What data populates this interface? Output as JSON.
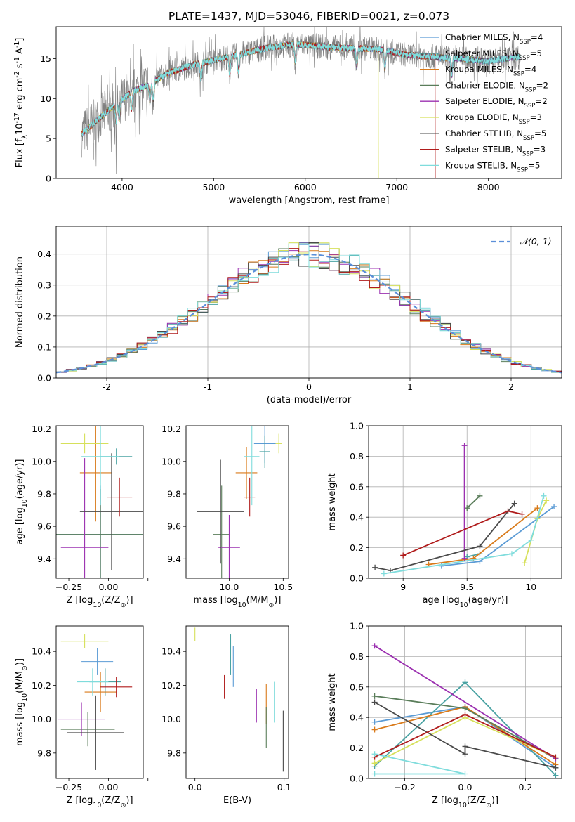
{
  "figure_title": "PLATE=1437, MJD=53046, FIBERID=0021, z=0.073",
  "models": [
    {
      "name": "Chabrier MILES, N$_{SSP}$=4",
      "label_base": "Chabrier MILES, N",
      "label_sub": "SSP",
      "label_tail": "=4",
      "color": "#5b9bd5"
    },
    {
      "name": "Salpeter MILES, N$_{SSP}$=5",
      "label_base": "Salpeter MILES, N",
      "label_sub": "SSP",
      "label_tail": "=5",
      "color": "#4aa3a3"
    },
    {
      "name": "Kroupa MILES, N$_{SSP}$=4",
      "label_base": "Kroupa MILES, N",
      "label_sub": "SSP",
      "label_tail": "=4",
      "color": "#d97a1a"
    },
    {
      "name": "Chabrier ELODIE, N$_{SSP}$=2",
      "label_base": "Chabrier ELODIE, N",
      "label_sub": "SSP",
      "label_tail": "=2",
      "color": "#5a7d5a"
    },
    {
      "name": "Salpeter ELODIE, N$_{SSP}$=2",
      "label_base": "Salpeter ELODIE, N",
      "label_sub": "SSP",
      "label_tail": "=2",
      "color": "#9b30b0"
    },
    {
      "name": "Kroupa ELODIE, N$_{SSP}$=3",
      "label_base": "Kroupa ELODIE, N",
      "label_sub": "SSP",
      "label_tail": "=3",
      "color": "#d6e05a"
    },
    {
      "name": "Chabrier STELIB, N$_{SSP}$=5",
      "label_base": "Chabrier STELIB, N",
      "label_sub": "SSP",
      "label_tail": "=5",
      "color": "#4a4a4a"
    },
    {
      "name": "Salpeter STELIB, N$_{SSP}$=3",
      "label_base": "Salpeter STELIB, N",
      "label_sub": "SSP",
      "label_tail": "=3",
      "color": "#b01c1c"
    },
    {
      "name": "Kroupa STELIB, N$_{SSP}$=5",
      "label_base": "Kroupa STELIB, N",
      "label_sub": "SSP",
      "label_tail": "=5",
      "color": "#7fdcdc"
    }
  ],
  "chart_data": [
    {
      "id": "spectrum",
      "type": "line",
      "title": "PLATE=1437, MJD=53046, FIBERID=0021, z=0.073",
      "xlabel": "wavelength [Angstrom, rest frame]",
      "ylabel": "Flux [f$_\\lambda$10$^{-17}$ erg cm$^{-2}$ s$^{-1}$ A$^{-1}$]",
      "xlim": [
        3280,
        8800
      ],
      "ylim": [
        0,
        19
      ],
      "xticks": [
        4000,
        5000,
        6000,
        7000,
        8000
      ],
      "yticks": [
        0,
        5,
        10,
        15
      ],
      "observed_color": "#808080",
      "continuum": {
        "x": [
          3550,
          3700,
          3900,
          4100,
          4300,
          4500,
          4800,
          5000,
          5300,
          5600,
          5900,
          6200,
          6500,
          6800,
          7100,
          7400,
          7700,
          8000,
          8300
        ],
        "y": [
          5.5,
          7.0,
          9.0,
          10.8,
          11.8,
          13.2,
          14.3,
          14.8,
          15.6,
          16.4,
          16.8,
          16.5,
          16.3,
          16.2,
          15.5,
          15.2,
          15.0,
          14.7,
          15.2
        ]
      },
      "model_dropouts": [
        {
          "model": "Kroupa ELODIE, N$_{SSP}$=3",
          "x": 6800
        },
        {
          "model": "Salpeter STELIB, N$_{SSP}$=3",
          "x": 7420
        }
      ],
      "grid": false,
      "legend": "top-right"
    },
    {
      "id": "residuals",
      "type": "bar",
      "xlabel": "(data-model)/error",
      "ylabel": "Normed distribution",
      "xlim": [
        -2.5,
        2.5
      ],
      "ylim": [
        0,
        0.49
      ],
      "xticks": [
        -2,
        -1,
        0,
        1,
        2
      ],
      "yticks": [
        0.0,
        0.1,
        0.2,
        0.3,
        0.4
      ],
      "bin_width": 0.1,
      "bin_start": -2.5,
      "reference": {
        "name": "$\\mathcal{N}(0,1)$",
        "mu": 0,
        "sigma": 1,
        "color": "#5b8fd9"
      },
      "legend": "top-right",
      "grid": true
    },
    {
      "id": "z-age",
      "type": "scatter",
      "xlabel": "Z [log$_{10}$(Z/Z$_\\odot$)]",
      "ylabel": "age  [log$_{10}$(age/yr)]",
      "xlim": [
        -0.33,
        0.22
      ],
      "ylim": [
        9.28,
        10.22
      ],
      "xticks": [
        -0.25,
        0,
        0.25
      ],
      "xticklabels": [
        "−0.25",
        "0.00",
        ""
      ],
      "yticks": [
        9.4,
        9.6,
        9.8,
        10.0,
        10.2
      ],
      "points": [
        {
          "x": -0.05,
          "y": 9.55,
          "xerr": 0.28,
          "yerr": 0.3
        },
        {
          "x": 0.05,
          "y": 10.03,
          "xerr": 0.1,
          "yerr": 0.05
        },
        {
          "x": -0.08,
          "y": 9.93,
          "xerr": 0.1,
          "yerr": 0.3
        },
        {
          "x": -0.05,
          "y": 9.55,
          "xerr": 0.28,
          "yerr": 0.28
        },
        {
          "x": -0.15,
          "y": 9.47,
          "xerr": 0.15,
          "yerr": 0.55
        },
        {
          "x": -0.15,
          "y": 10.11,
          "xerr": 0.15,
          "yerr": 0.06
        },
        {
          "x": 0.02,
          "y": 9.69,
          "xerr": 0.2,
          "yerr": 0.36
        },
        {
          "x": 0.07,
          "y": 9.78,
          "xerr": 0.08,
          "yerr": 0.12
        },
        {
          "x": -0.05,
          "y": 10.03,
          "xerr": 0.12,
          "yerr": 0.3
        }
      ]
    },
    {
      "id": "mass-age",
      "type": "scatter",
      "xlabel": "mass [log$_{10}$(M/M$_\\odot$)]",
      "ylabel": "",
      "xlim": [
        9.6,
        10.55
      ],
      "ylim": [
        9.28,
        10.22
      ],
      "xticks": [
        10.0,
        10.5
      ],
      "xticklabels": [
        "10.0",
        "10.5"
      ],
      "yticks": [
        9.4,
        9.6,
        9.8,
        10.0,
        10.2
      ],
      "points": [
        {
          "x": 10.33,
          "y": 10.11,
          "xerr": 0.1,
          "yerr": 0.12
        },
        {
          "x": 10.33,
          "y": 10.06,
          "xerr": 0.05,
          "yerr": 0.1
        },
        {
          "x": 10.16,
          "y": 9.93,
          "xerr": 0.1,
          "yerr": 0.16
        },
        {
          "x": 9.93,
          "y": 9.55,
          "xerr": 0.08,
          "yerr": 0.3
        },
        {
          "x": 10.0,
          "y": 9.47,
          "xerr": 0.1,
          "yerr": 0.2
        },
        {
          "x": 10.46,
          "y": 10.11,
          "xerr": 0.03,
          "yerr": 0.06
        },
        {
          "x": 9.92,
          "y": 9.69,
          "xerr": 0.22,
          "yerr": 0.32
        },
        {
          "x": 10.19,
          "y": 9.78,
          "xerr": 0.05,
          "yerr": 0.12
        },
        {
          "x": 10.21,
          "y": 10.03,
          "xerr": 0.07,
          "yerr": 0.3
        }
      ]
    },
    {
      "id": "age-weight",
      "type": "line",
      "xlabel": "age  [log$_{10}$(age/yr)]",
      "ylabel": "mass weight",
      "xlim": [
        8.73,
        10.24
      ],
      "ylim": [
        0.0,
        1.0
      ],
      "xticks": [
        9.0,
        9.5,
        10.0
      ],
      "yticks": [
        0.0,
        0.2,
        0.4,
        0.6,
        0.8,
        1.0
      ],
      "series": [
        {
          "x": [
            9.3,
            9.6,
            10.18
          ],
          "y": [
            0.08,
            0.11,
            0.47
          ]
        },
        {
          "x": [
            9.5,
            9.6
          ],
          "y": [
            0.14,
            0.16
          ]
        },
        {
          "x": [
            9.2,
            9.55,
            10.05
          ],
          "y": [
            0.09,
            0.13,
            0.46
          ]
        },
        {
          "x": [
            9.5,
            9.6
          ],
          "y": [
            0.46,
            0.54
          ]
        },
        {
          "x": [
            9.48,
            9.48
          ],
          "y": [
            0.13,
            0.87
          ]
        },
        {
          "x": [
            9.95,
            10.05,
            10.12
          ],
          "y": [
            0.1,
            0.39,
            0.51
          ]
        },
        {
          "x": [
            8.78,
            8.9,
            9.6,
            9.87
          ],
          "y": [
            0.07,
            0.05,
            0.21,
            0.49
          ]
        },
        {
          "x": [
            9.0,
            9.82,
            9.93
          ],
          "y": [
            0.15,
            0.44,
            0.42
          ]
        },
        {
          "x": [
            8.85,
            9.85,
            10.0,
            10.1
          ],
          "y": [
            0.03,
            0.16,
            0.25,
            0.54
          ]
        }
      ],
      "grid": true
    },
    {
      "id": "z-mass",
      "type": "scatter",
      "xlabel": "Z [log$_{10}$(Z/Z$_\\odot$)]",
      "ylabel": "mass [log$_{10}$(M/M$_\\odot$)]",
      "xlim": [
        -0.33,
        0.22
      ],
      "ylim": [
        9.65,
        10.55
      ],
      "xticks": [
        -0.25,
        0,
        0.25
      ],
      "xticklabels": [
        "−0.25",
        "0.00",
        ""
      ],
      "yticks": [
        9.8,
        10.0,
        10.2,
        10.4
      ],
      "points": [
        {
          "x": -0.07,
          "y": 10.34,
          "xerr": 0.1,
          "yerr": 0.08
        },
        {
          "x": -0.02,
          "y": 10.22,
          "xerr": 0.1,
          "yerr": 0.08
        },
        {
          "x": -0.05,
          "y": 10.16,
          "xerr": 0.1,
          "yerr": 0.12
        },
        {
          "x": -0.13,
          "y": 9.94,
          "xerr": 0.17,
          "yerr": 0.1
        },
        {
          "x": -0.17,
          "y": 10.0,
          "xerr": 0.15,
          "yerr": 0.1
        },
        {
          "x": -0.15,
          "y": 10.46,
          "xerr": 0.15,
          "yerr": 0.04
        },
        {
          "x": -0.08,
          "y": 9.92,
          "xerr": 0.18,
          "yerr": 0.22
        },
        {
          "x": 0.05,
          "y": 10.19,
          "xerr": 0.1,
          "yerr": 0.06
        },
        {
          "x": -0.1,
          "y": 10.22,
          "xerr": 0.1,
          "yerr": 0.08
        }
      ]
    },
    {
      "id": "ebv-mass",
      "type": "scatter",
      "xlabel": "E(B-V)",
      "ylabel": "",
      "xlim": [
        -0.01,
        0.105
      ],
      "ylim": [
        9.65,
        10.55
      ],
      "xticks": [
        0.0,
        0.1
      ],
      "xticklabels": [
        "0.0",
        "0.1"
      ],
      "yticks": [
        9.8,
        10.0,
        10.2,
        10.4
      ],
      "points": [
        {
          "x": 0.043,
          "y": 10.31,
          "yerr": 0.12
        },
        {
          "x": 0.04,
          "y": 10.38,
          "yerr": 0.12
        },
        {
          "x": 0.08,
          "y": 10.09,
          "yerr": 0.12
        },
        {
          "x": 0.08,
          "y": 9.95,
          "yerr": 0.12
        },
        {
          "x": 0.069,
          "y": 10.08,
          "yerr": 0.1
        },
        {
          "x": 0.0,
          "y": 10.5,
          "yerr": 0.04
        },
        {
          "x": 0.099,
          "y": 9.87,
          "yerr": 0.18
        },
        {
          "x": 0.033,
          "y": 10.19,
          "yerr": 0.07
        },
        {
          "x": 0.089,
          "y": 10.1,
          "yerr": 0.12
        }
      ]
    },
    {
      "id": "z-weight",
      "type": "line",
      "xlabel": "Z [log$_{10}$(Z/Z$_\\odot$)]",
      "ylabel": "mass weight",
      "xlim": [
        -0.32,
        0.32
      ],
      "ylim": [
        0.0,
        1.0
      ],
      "xticks": [
        -0.2,
        0.0,
        0.2
      ],
      "xticklabels": [
        "−0.2",
        "0.0",
        "0.2"
      ],
      "yticks": [
        0.0,
        0.2,
        0.4,
        0.6,
        0.8,
        1.0
      ],
      "series": [
        {
          "x": [
            -0.3,
            0.0,
            0.3
          ],
          "y": [
            0.37,
            0.47,
            0.07
          ]
        },
        {
          "x": [
            -0.3,
            0.0,
            0.3
          ],
          "y": [
            0.08,
            0.63,
            0.02
          ]
        },
        {
          "x": [
            -0.3,
            0.0,
            0.3
          ],
          "y": [
            0.32,
            0.47,
            0.09
          ]
        },
        {
          "x": [
            -0.3,
            0.0,
            0.3
          ],
          "y": [
            0.54,
            0.46,
            0.13
          ]
        },
        {
          "x": [
            -0.3,
            0.3
          ],
          "y": [
            0.87,
            0.13
          ]
        },
        {
          "x": [
            -0.3,
            0.0,
            0.3
          ],
          "y": [
            0.1,
            0.4,
            0.14
          ]
        },
        {
          "x": [
            -0.3,
            0.0,
            0.0,
            0.3
          ],
          "y": [
            0.5,
            0.16,
            0.21,
            0.07
          ]
        },
        {
          "x": [
            -0.3,
            0.0,
            0.3
          ],
          "y": [
            0.14,
            0.42,
            0.14
          ]
        },
        {
          "x": [
            -0.3,
            0.0,
            -0.3
          ],
          "y": [
            0.16,
            0.03,
            0.03
          ]
        }
      ],
      "grid": true
    }
  ]
}
